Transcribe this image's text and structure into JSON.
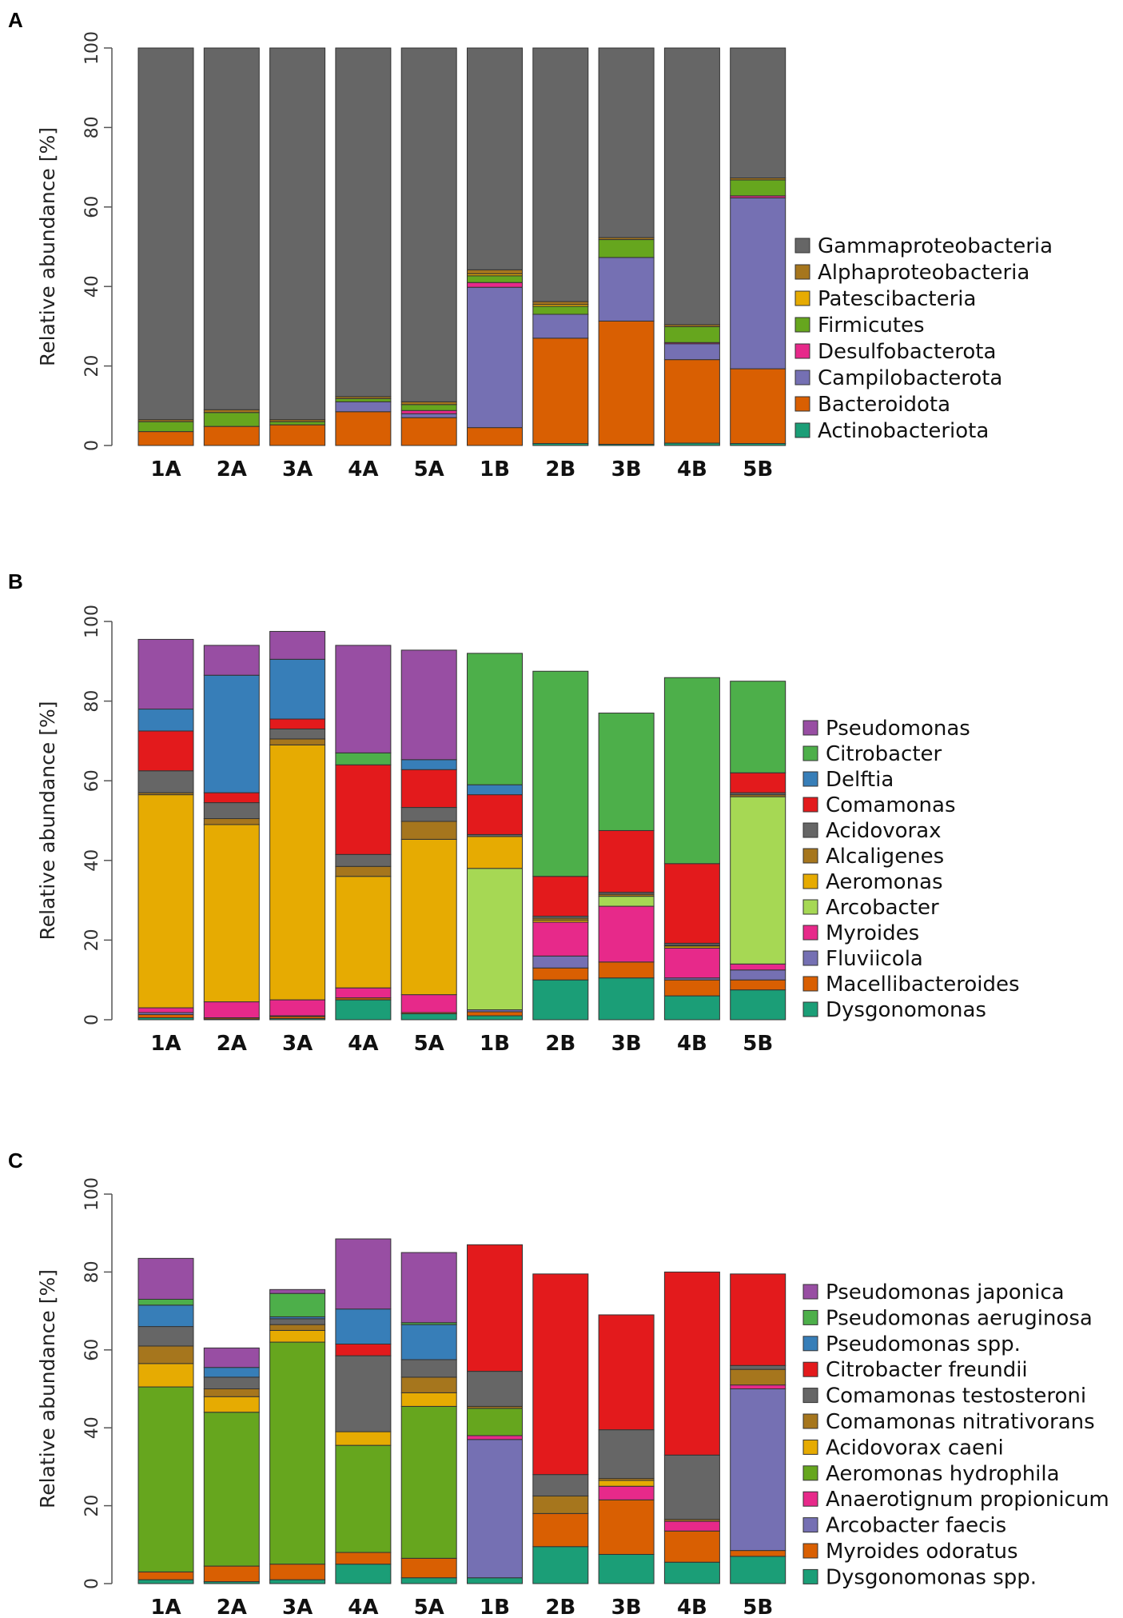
{
  "panel_labels": [
    "A",
    "B",
    "C"
  ],
  "chart_data": [
    {
      "type": "bar",
      "stacked": true,
      "panel": "A",
      "title": "",
      "xlabel": "",
      "ylabel": "Relative abundance [%]",
      "ylim": [
        0,
        100
      ],
      "yticks": [
        "0",
        "20",
        "40",
        "60",
        "80",
        "100"
      ],
      "categories": [
        "1A",
        "2A",
        "3A",
        "4A",
        "5A",
        "1B",
        "2B",
        "3B",
        "4B",
        "5B"
      ],
      "legend_position": "right",
      "series": [
        {
          "name": "Actinobacteriota",
          "color": "#1b9e77",
          "values": [
            0,
            0,
            0,
            0,
            0,
            0,
            0.5,
            0.3,
            0.6,
            0.5
          ]
        },
        {
          "name": "Bacteroidota",
          "color": "#d95f02",
          "values": [
            3.5,
            4.8,
            5.2,
            8.5,
            7.0,
            4.5,
            26.5,
            31,
            21,
            18.8
          ]
        },
        {
          "name": "Campilobacterota",
          "color": "#7570b3",
          "values": [
            0,
            0,
            0,
            2.5,
            1.0,
            35.3,
            6.0,
            16,
            4.0,
            43
          ]
        },
        {
          "name": "Desulfobacterota",
          "color": "#e7298a",
          "values": [
            0,
            0,
            0,
            0,
            0.8,
            1.2,
            0,
            0,
            0.3,
            0.5
          ]
        },
        {
          "name": "Firmicutes",
          "color": "#66a61e",
          "values": [
            2.5,
            3.5,
            0.8,
            0.8,
            1.5,
            1.7,
            2.0,
            4.5,
            4.0,
            4.0
          ]
        },
        {
          "name": "Patescibacteria",
          "color": "#e6ab02",
          "values": [
            0,
            0,
            0,
            0,
            0,
            0.5,
            0.5,
            0,
            0,
            0
          ]
        },
        {
          "name": "Alphaproteobacteria",
          "color": "#a6761d",
          "values": [
            0.5,
            0.7,
            0.5,
            0.5,
            0.7,
            1.0,
            0.7,
            0.5,
            0.5,
            0.5
          ]
        },
        {
          "name": "Gammaproteobacteria",
          "color": "#666666",
          "values": [
            93.5,
            91.0,
            93.5,
            87.7,
            89.0,
            55.8,
            63.8,
            47.7,
            69.6,
            32.7
          ]
        }
      ]
    },
    {
      "type": "bar",
      "stacked": true,
      "panel": "B",
      "title": "",
      "xlabel": "",
      "ylabel": "Relative abundance [%]",
      "ylim": [
        0,
        100
      ],
      "yticks": [
        "0",
        "20",
        "40",
        "60",
        "80",
        "100"
      ],
      "categories": [
        "1A",
        "2A",
        "3A",
        "4A",
        "5A",
        "1B",
        "2B",
        "3B",
        "4B",
        "5B"
      ],
      "legend_position": "right",
      "series": [
        {
          "name": "Dysgonomonas",
          "color": "#1b9e77",
          "values": [
            0.5,
            0.2,
            0.3,
            5.0,
            1.5,
            1.0,
            10.0,
            10.5,
            6.0,
            7.5
          ]
        },
        {
          "name": "Macellibacteroides",
          "color": "#d95f02",
          "values": [
            0.8,
            0.3,
            0.5,
            0.5,
            0.3,
            1.0,
            3.0,
            4.0,
            4.0,
            2.5
          ]
        },
        {
          "name": "Fluviicola",
          "color": "#7570b3",
          "values": [
            0.5,
            0,
            0.2,
            0,
            0,
            0.5,
            3.0,
            0,
            0.5,
            2.5
          ]
        },
        {
          "name": "Myroides",
          "color": "#e7298a",
          "values": [
            1.2,
            4.0,
            4.0,
            2.5,
            4.5,
            0,
            8.5,
            14.0,
            7.5,
            1.5
          ]
        },
        {
          "name": "Arcobacter",
          "color": "#a6d854",
          "values": [
            0,
            0,
            0,
            0,
            0,
            35.5,
            0,
            2.5,
            0,
            42.0
          ]
        },
        {
          "name": "Aeromonas",
          "color": "#e6ab02",
          "values": [
            53.5,
            44.5,
            64.0,
            28.0,
            39.0,
            8.0,
            0.5,
            0,
            0.5,
            0
          ]
        },
        {
          "name": "Alcaligenes",
          "color": "#a6761d",
          "values": [
            0.5,
            1.5,
            1.5,
            2.5,
            4.5,
            0,
            0.5,
            0.5,
            0.2,
            0.5
          ]
        },
        {
          "name": "Acidovorax",
          "color": "#666666",
          "values": [
            5.5,
            4.0,
            2.5,
            3.0,
            3.5,
            0.5,
            0.5,
            0.5,
            0.5,
            0.5
          ]
        },
        {
          "name": "Comamonas",
          "color": "#e31a1c",
          "values": [
            10.0,
            2.5,
            2.5,
            22.5,
            9.5,
            10.0,
            10.0,
            15.5,
            20.0,
            5.0
          ]
        },
        {
          "name": "Delftia",
          "color": "#377eb8",
          "values": [
            5.5,
            29.5,
            15.0,
            0,
            2.5,
            2.5,
            0,
            0,
            0,
            0
          ]
        },
        {
          "name": "Citrobacter",
          "color": "#4daf4a",
          "values": [
            0,
            0,
            0,
            3.0,
            0,
            33.0,
            51.5,
            29.5,
            46.7,
            23.0
          ]
        },
        {
          "name": "Pseudomonas",
          "color": "#984ea3",
          "values": [
            17.5,
            7.5,
            7.0,
            27.0,
            27.5,
            0,
            0,
            0,
            0,
            0
          ]
        }
      ]
    },
    {
      "type": "bar",
      "stacked": true,
      "panel": "C",
      "title": "",
      "xlabel": "",
      "ylabel": "Relative abundance [%]",
      "ylim": [
        0,
        100
      ],
      "yticks": [
        "0",
        "20",
        "40",
        "60",
        "80",
        "100"
      ],
      "categories": [
        "1A",
        "2A",
        "3A",
        "4A",
        "5A",
        "1B",
        "2B",
        "3B",
        "4B",
        "5B"
      ],
      "legend_position": "right",
      "series": [
        {
          "name": "Dysgonomonas spp.",
          "color": "#1b9e77",
          "values": [
            1.0,
            0.5,
            1.0,
            5.0,
            1.5,
            1.5,
            9.5,
            7.5,
            5.5,
            7.0
          ]
        },
        {
          "name": "Myroides odoratus",
          "color": "#d95f02",
          "values": [
            2.0,
            4.0,
            4.0,
            3.0,
            5.0,
            0,
            8.5,
            14.0,
            8.0,
            1.5
          ]
        },
        {
          "name": "Arcobacter faecis",
          "color": "#7570b3",
          "values": [
            0,
            0,
            0,
            0,
            0,
            35.5,
            0,
            0,
            0,
            41.5
          ]
        },
        {
          "name": "Anaerotignum propionicum",
          "color": "#e7298a",
          "values": [
            0,
            0,
            0,
            0,
            0,
            1.0,
            0,
            3.5,
            2.5,
            1.0
          ]
        },
        {
          "name": "Aeromonas hydrophila",
          "color": "#66a61e",
          "values": [
            47.5,
            39.5,
            57.0,
            27.5,
            39.0,
            7.0,
            0,
            0,
            0,
            0
          ]
        },
        {
          "name": "Acidovorax caeni",
          "color": "#e6ab02",
          "values": [
            6.0,
            4.0,
            3.0,
            3.5,
            3.5,
            0,
            0,
            1.5,
            0,
            0
          ]
        },
        {
          "name": "Comamonas nitrativorans",
          "color": "#a6761d",
          "values": [
            4.5,
            2.0,
            1.5,
            0,
            4.0,
            0.5,
            4.5,
            0.5,
            0.5,
            4.0
          ]
        },
        {
          "name": "Comamonas testosteroni",
          "color": "#666666",
          "values": [
            5.0,
            3.0,
            1.5,
            19.5,
            4.5,
            9.0,
            5.5,
            12.5,
            16.5,
            1.0
          ]
        },
        {
          "name": "Citrobacter freundii",
          "color": "#e31a1c",
          "values": [
            0,
            0,
            0,
            3.0,
            0,
            32.5,
            51.5,
            29.5,
            47.0,
            23.5
          ]
        },
        {
          "name": "Pseudomonas spp.",
          "color": "#377eb8",
          "values": [
            5.5,
            2.5,
            0.5,
            9.0,
            9.0,
            0,
            0,
            0,
            0,
            0
          ]
        },
        {
          "name": "Pseudomonas aeruginosa",
          "color": "#4daf4a",
          "values": [
            1.5,
            0,
            6.0,
            0,
            0.5,
            0,
            0,
            0,
            0,
            0
          ]
        },
        {
          "name": "Pseudomonas japonica",
          "color": "#984ea3",
          "values": [
            10.5,
            5.0,
            1.0,
            18.0,
            18.0,
            0,
            0,
            0,
            0,
            0
          ]
        }
      ]
    }
  ]
}
